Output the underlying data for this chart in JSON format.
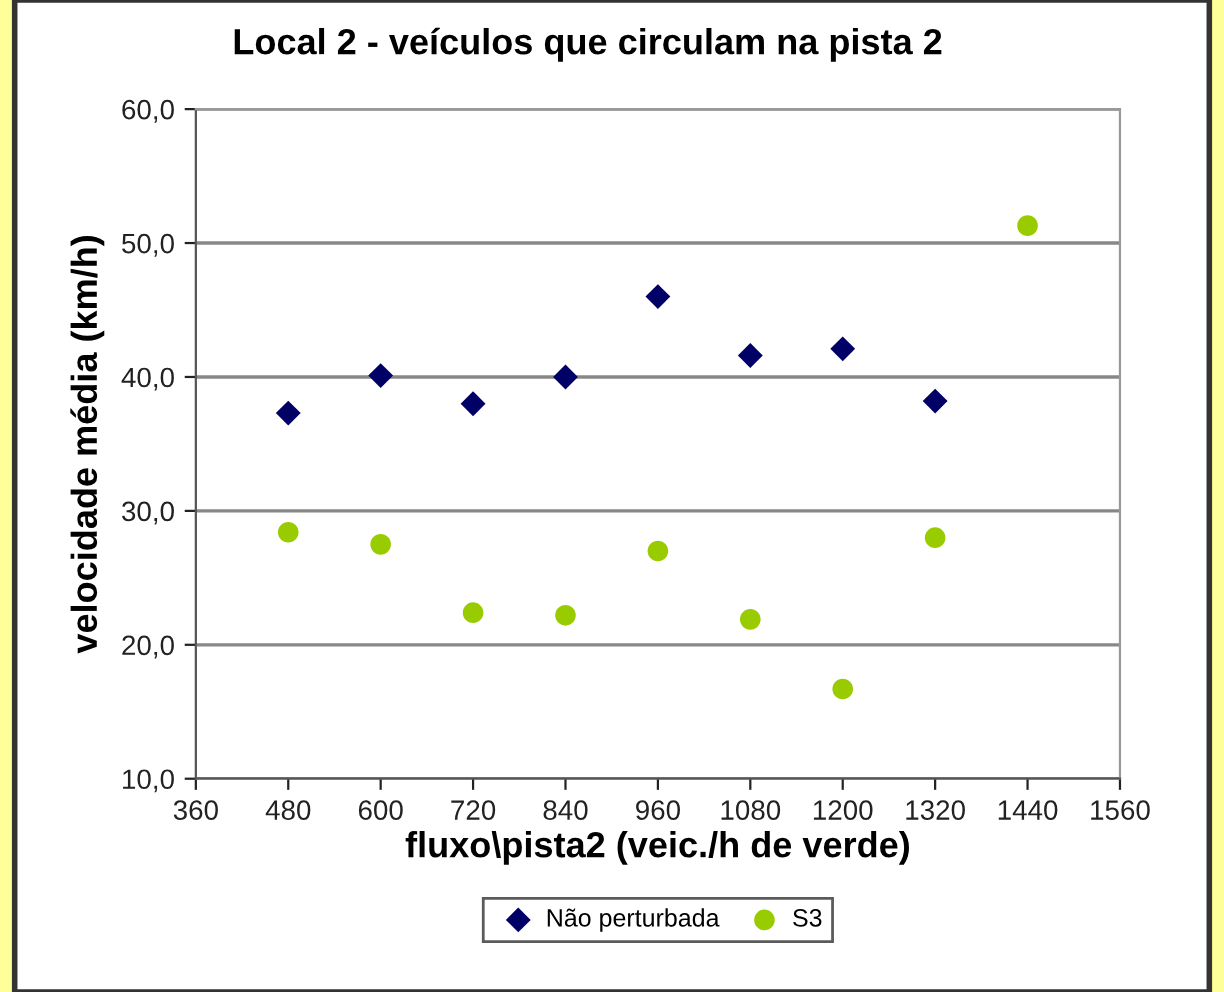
{
  "chart_data": {
    "type": "scatter",
    "title": "Local 2 - veículos que circulam na pista 2",
    "xlabel": "fluxo\\pista2 (veic./h de verde)",
    "ylabel": "velocidade média (km/h)",
    "xlim": [
      360,
      1560
    ],
    "xticks": [
      360,
      480,
      600,
      720,
      840,
      960,
      1080,
      1200,
      1320,
      1440,
      1560
    ],
    "ylim": [
      10,
      60
    ],
    "yticks": [
      {
        "value": 10,
        "label": "10,0"
      },
      {
        "value": 20,
        "label": "20,0"
      },
      {
        "value": 30,
        "label": "30,0"
      },
      {
        "value": 40,
        "label": "40,0"
      },
      {
        "value": 50,
        "label": "50,0"
      },
      {
        "value": 60,
        "label": "60,0"
      }
    ],
    "grid": "y",
    "legend": "bottom",
    "series": [
      {
        "name": "Não perturbada",
        "color": "#000066",
        "marker": "diamond",
        "x": [
          480,
          600,
          720,
          840,
          960,
          1080,
          1200,
          1320
        ],
        "values": [
          37.3,
          40.1,
          38.0,
          40.0,
          46.0,
          41.6,
          42.1,
          38.2
        ]
      },
      {
        "name": "S3",
        "color": "#99cc00",
        "marker": "circle",
        "x": [
          480,
          600,
          720,
          840,
          960,
          1080,
          1200,
          1320,
          1440
        ],
        "values": [
          28.4,
          27.5,
          22.4,
          22.2,
          27.0,
          21.9,
          16.7,
          28.0,
          51.3
        ]
      }
    ]
  }
}
